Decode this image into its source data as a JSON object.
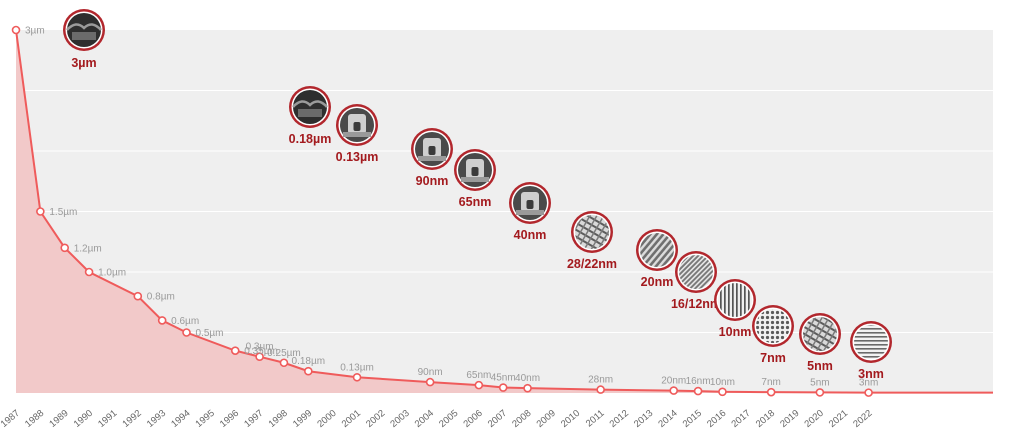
{
  "colors": {
    "line": "#ef5b5b",
    "area": "#f2c9c9",
    "plot_background": "#efefef",
    "gridline": "#ffffff",
    "node_label": "#a31a1e",
    "node_ring": "#b2272d",
    "point_label": "#9a9a9a"
  },
  "chart_data": {
    "type": "area",
    "title": "",
    "xlabel": "",
    "ylabel": "",
    "grid": true,
    "y_tick_labels_shown": false,
    "x": [
      "1987",
      "1988",
      "1989",
      "1990",
      "1991",
      "1992",
      "1993",
      "1994",
      "1995",
      "1996",
      "1997",
      "1998",
      "1999",
      "2000",
      "2001",
      "2002",
      "2003",
      "2004",
      "2005",
      "2006",
      "2007",
      "2008",
      "2009",
      "2010",
      "2011",
      "2012",
      "2013",
      "2014",
      "2015",
      "2016",
      "2017",
      "2018",
      "2019",
      "2020",
      "2021",
      "2022"
    ],
    "points": [
      {
        "year": "1987",
        "value_um": 3.0,
        "label": "3µm"
      },
      {
        "year": "1988",
        "value_um": 1.5,
        "label": "1.5µm"
      },
      {
        "year": "1989",
        "value_um": 1.2,
        "label": "1.2µm"
      },
      {
        "year": "1990",
        "value_um": 1.0,
        "label": "1.0µm"
      },
      {
        "year": "1992",
        "value_um": 0.8,
        "label": "0.8µm"
      },
      {
        "year": "1993",
        "value_um": 0.6,
        "label": "0.6µm"
      },
      {
        "year": "1994",
        "value_um": 0.5,
        "label": "0.5µm"
      },
      {
        "year": "1996",
        "value_um": 0.35,
        "label": "0.35µm"
      },
      {
        "year": "1997",
        "value_um": 0.3,
        "label": "0.3µm"
      },
      {
        "year": "1998",
        "value_um": 0.25,
        "label": "0.25µm"
      },
      {
        "year": "1999",
        "value_um": 0.18,
        "label": "0.18µm"
      },
      {
        "year": "2001",
        "value_um": 0.13,
        "label": "0.13µm"
      },
      {
        "year": "2004",
        "value_um": 0.09,
        "label": "90nm"
      },
      {
        "year": "2006",
        "value_um": 0.065,
        "label": "65nm"
      },
      {
        "year": "2007",
        "value_um": 0.045,
        "label": "45nm"
      },
      {
        "year": "2008",
        "value_um": 0.04,
        "label": "40nm"
      },
      {
        "year": "2011",
        "value_um": 0.028,
        "label": "28nm"
      },
      {
        "year": "2014",
        "value_um": 0.02,
        "label": "20nm"
      },
      {
        "year": "2015",
        "value_um": 0.016,
        "label": "16nm"
      },
      {
        "year": "2016",
        "value_um": 0.01,
        "label": "10nm"
      },
      {
        "year": "2018",
        "value_um": 0.007,
        "label": "7nm"
      },
      {
        "year": "2020",
        "value_um": 0.005,
        "label": "5nm"
      },
      {
        "year": "2022",
        "value_um": 0.003,
        "label": "3nm"
      }
    ],
    "ylim": [
      0,
      3.0
    ],
    "node_images": [
      {
        "label": "3µm",
        "icon": "sem-3um"
      },
      {
        "label": "0.18µm",
        "icon": "sem-0-18um"
      },
      {
        "label": "0.13µm",
        "icon": "sem-0-13um"
      },
      {
        "label": "90nm",
        "icon": "sem-90nm"
      },
      {
        "label": "65nm",
        "icon": "sem-65nm"
      },
      {
        "label": "40nm",
        "icon": "sem-40nm"
      },
      {
        "label": "28/22nm",
        "icon": "sem-28-22nm"
      },
      {
        "label": "20nm",
        "icon": "sem-20nm"
      },
      {
        "label": "16/12nm",
        "icon": "sem-16-12nm"
      },
      {
        "label": "10nm",
        "icon": "sem-10nm"
      },
      {
        "label": "7nm",
        "icon": "sem-7nm"
      },
      {
        "label": "5nm",
        "icon": "sem-5nm"
      },
      {
        "label": "3nm",
        "icon": "sem-3nm"
      }
    ]
  }
}
